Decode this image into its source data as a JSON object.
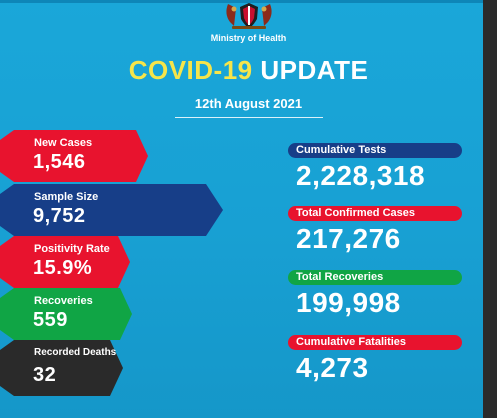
{
  "header": {
    "ministry": "Ministry of Health",
    "title_highlight": "COVID-19",
    "title_rest": "UPDATE",
    "date": "12th August 2021"
  },
  "left_stats": [
    {
      "label": "New Cases",
      "value": "1,546",
      "color": "#e8132e"
    },
    {
      "label": "Sample Size",
      "value": "9,752",
      "color": "#173e88"
    },
    {
      "label": "Positivity Rate",
      "value": "15.9%",
      "color": "#e8132e"
    },
    {
      "label": "Recoveries",
      "value": "559",
      "color": "#10a545"
    },
    {
      "label": "Recorded Deaths",
      "value": "32",
      "color": "#2a2a2a"
    }
  ],
  "right_stats": [
    {
      "label": "Cumulative Tests",
      "value": "2,228,318",
      "color": "#173e88"
    },
    {
      "label": "Total Confirmed Cases",
      "value": "217,276",
      "color": "#e8132e"
    },
    {
      "label": "Total Recoveries",
      "value": "199,998",
      "color": "#10a545"
    },
    {
      "label": "Cumulative Fatalities",
      "value": "4,273",
      "color": "#e8132e"
    }
  ],
  "colors": {
    "background": "#19a3d6",
    "title_highlight": "#f6e54a"
  },
  "icons": {
    "seal": "coat-of-arms-icon"
  }
}
